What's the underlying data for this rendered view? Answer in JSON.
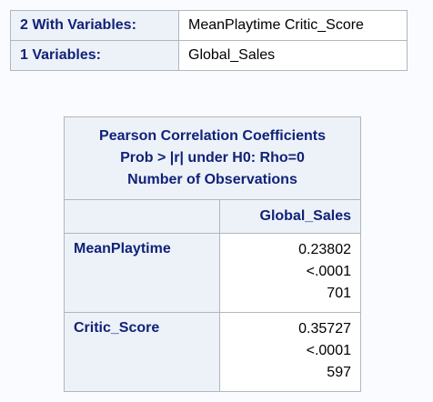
{
  "variables_table": {
    "rows": [
      {
        "label": "2 With Variables:",
        "value": "MeanPlaytime Critic_Score"
      },
      {
        "label": "1 Variables:",
        "value": "Global_Sales"
      }
    ]
  },
  "correlation_table": {
    "caption": [
      "Pearson Correlation Coefficients",
      "Prob > |r| under H0: Rho=0",
      "Number of Observations"
    ],
    "column_header": "Global_Sales",
    "rows": [
      {
        "name": "MeanPlaytime",
        "coefficient": "0.23802",
        "p_value": "<.0001",
        "n": "701"
      },
      {
        "name": "Critic_Score",
        "coefficient": "0.35727",
        "p_value": "<.0001",
        "n": "597"
      }
    ]
  }
}
